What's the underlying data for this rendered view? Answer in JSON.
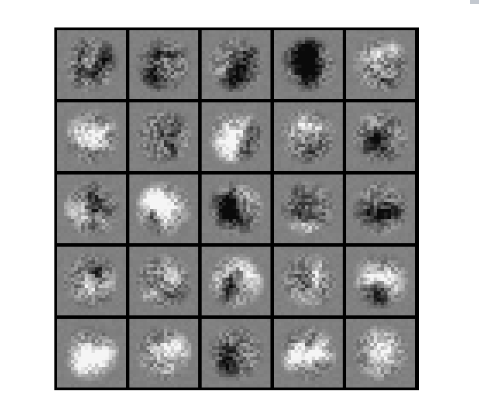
{
  "figure": {
    "description_free": true,
    "grid": {
      "rows": 5,
      "cols": 5
    },
    "background_gray": "#808080",
    "border_color": "#000000",
    "corner_mark_color": "#c3c8cf",
    "tiles": [
      {
        "id": 1,
        "seed": 11
      },
      {
        "id": 2,
        "seed": 27
      },
      {
        "id": 3,
        "seed": 43
      },
      {
        "id": 4,
        "seed": 59
      },
      {
        "id": 5,
        "seed": 71
      },
      {
        "id": 6,
        "seed": 83
      },
      {
        "id": 7,
        "seed": 97
      },
      {
        "id": 8,
        "seed": 109
      },
      {
        "id": 9,
        "seed": 127
      },
      {
        "id": 10,
        "seed": 139
      },
      {
        "id": 11,
        "seed": 151
      },
      {
        "id": 12,
        "seed": 163
      },
      {
        "id": 13,
        "seed": 179
      },
      {
        "id": 14,
        "seed": 191
      },
      {
        "id": 15,
        "seed": 211
      },
      {
        "id": 16,
        "seed": 223
      },
      {
        "id": 17,
        "seed": 239
      },
      {
        "id": 18,
        "seed": 251
      },
      {
        "id": 19,
        "seed": 263
      },
      {
        "id": 20,
        "seed": 277
      },
      {
        "id": 21,
        "seed": 293
      },
      {
        "id": 22,
        "seed": 307
      },
      {
        "id": 23,
        "seed": 317
      },
      {
        "id": 24,
        "seed": 331
      },
      {
        "id": 25,
        "seed": 347
      }
    ]
  }
}
